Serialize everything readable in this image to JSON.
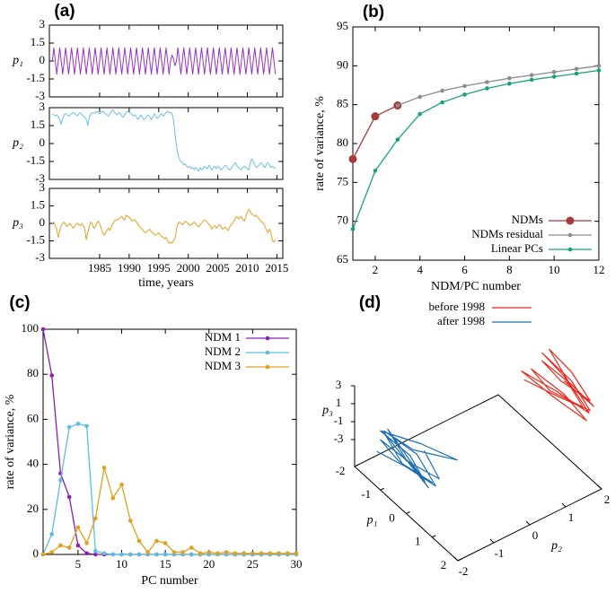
{
  "chart_data": [
    {
      "type": "line",
      "panel": "(a)",
      "x": [
        1977,
        1977.25,
        1977.5,
        1977.75,
        1978,
        1978.25,
        1978.5,
        1978.75,
        1979,
        1979.25,
        1979.5,
        1979.75,
        1980,
        1980.25,
        1980.5,
        1980.75,
        1981,
        1981.25,
        1981.5,
        1981.75,
        1982,
        1982.25,
        1982.5,
        1982.75,
        1983,
        1983.25,
        1983.5,
        1983.75,
        1984,
        1984.25,
        1984.5,
        1984.75,
        1985,
        1985.25,
        1985.5,
        1985.75,
        1986,
        1986.25,
        1986.5,
        1986.75,
        1987,
        1987.25,
        1987.5,
        1987.75,
        1988,
        1988.25,
        1988.5,
        1988.75,
        1989,
        1989.25,
        1989.5,
        1989.75,
        1990,
        1990.25,
        1990.5,
        1990.75,
        1991,
        1991.25,
        1991.5,
        1991.75,
        1992,
        1992.25,
        1992.5,
        1992.75,
        1993,
        1993.25,
        1993.5,
        1993.75,
        1994,
        1994.25,
        1994.5,
        1994.75,
        1995,
        1995.25,
        1995.5,
        1995.75,
        1996,
        1996.25,
        1996.5,
        1996.75,
        1997,
        1997.25,
        1997.5,
        1997.75,
        1998,
        1998.25,
        1998.5,
        1998.75,
        1999,
        1999.25,
        1999.5,
        1999.75,
        2000,
        2000.25,
        2000.5,
        2000.75,
        2001,
        2001.25,
        2001.5,
        2001.75,
        2002,
        2002.25,
        2002.5,
        2002.75,
        2003,
        2003.25,
        2003.5,
        2003.75,
        2004,
        2004.25,
        2004.5,
        2004.75,
        2005,
        2005.25,
        2005.5,
        2005.75,
        2006,
        2006.25,
        2006.5,
        2006.75,
        2007,
        2007.25,
        2007.5,
        2007.75,
        2008,
        2008.25,
        2008.5,
        2008.75,
        2009,
        2009.25,
        2009.5,
        2009.75,
        2010,
        2010.25,
        2010.5,
        2010.75,
        2011,
        2011.25,
        2011.5,
        2011.75,
        2012,
        2012.25,
        2012.5,
        2012.75,
        2013,
        2013.25,
        2013.5,
        2013.75,
        2014,
        2014.25,
        2014.5,
        2014.75
      ],
      "xlim": [
        1976.5,
        2016
      ],
      "xticks": [
        1985,
        1990,
        1995,
        2000,
        2005,
        2010,
        2015
      ],
      "xlabel": "time, years",
      "subplots": [
        {
          "ylabel": "p₁",
          "color": "#9b2fc2",
          "ylim": [
            -3,
            3
          ],
          "yticks": [
            -3,
            -1.5,
            0,
            1.5,
            3
          ],
          "values": [
            0,
            1.1,
            0,
            -1.1,
            0,
            1.1,
            0,
            -1.1,
            0,
            1.1,
            0,
            -1.1,
            0,
            1.1,
            0,
            -1.1,
            0,
            1.1,
            0,
            -1.1,
            0,
            1.1,
            0,
            -1.1,
            0,
            1.1,
            0,
            -1.1,
            0,
            1.1,
            0,
            -1.1,
            0,
            1.1,
            0,
            -1.1,
            0,
            1.1,
            0,
            -1.1,
            0,
            1.1,
            0,
            -1.1,
            0,
            1.1,
            0,
            -1.1,
            0,
            1.1,
            0,
            -1.1,
            0,
            1.1,
            0,
            -1.1,
            0,
            1.1,
            0,
            -1.1,
            0,
            1.1,
            0,
            -1.1,
            0,
            1.1,
            0,
            -1.1,
            0,
            1.1,
            0,
            -1.1,
            0,
            1.1,
            0,
            -1.1,
            0,
            1.1,
            0,
            -1.1,
            0,
            0.5,
            0.2,
            -0.4,
            0,
            1.1,
            0,
            -1.1,
            0,
            1.1,
            0,
            -1.1,
            0,
            1.1,
            0,
            -1.1,
            0,
            1.1,
            0,
            -1.1,
            0,
            1.1,
            0,
            -1.1,
            0,
            1.1,
            0,
            -1.1,
            0,
            1.1,
            0,
            -1.1,
            0,
            1.1,
            0,
            -1.1,
            0,
            1.1,
            0,
            -1.1,
            0,
            1.1,
            0,
            -1.1,
            0,
            1.1,
            0,
            -1.1,
            0,
            1.1,
            0,
            -1.1,
            0,
            1.1,
            0,
            -1.1,
            0,
            1.1,
            0,
            -1.1,
            0,
            1.1,
            0,
            -1.1,
            0,
            1.1,
            0,
            -1.1,
            0,
            1.1,
            0,
            -1.1
          ]
        },
        {
          "ylabel": "p₂",
          "color": "#6cbfe5",
          "ylim": [
            -3,
            3
          ],
          "yticks": [
            -3,
            -1.5,
            0,
            1.5,
            3
          ],
          "values": [
            2.5,
            2.4,
            2.3,
            2.4,
            2.2,
            2.0,
            1.6,
            2.1,
            2.4,
            2.5,
            2.4,
            2.3,
            2.4,
            2.5,
            2.6,
            2.5,
            2.4,
            2.3,
            2.5,
            2.6,
            2.4,
            2.3,
            2.2,
            2.0,
            1.5,
            2.2,
            2.5,
            2.6,
            2.5,
            2.6,
            2.7,
            2.6,
            2.5,
            2.6,
            2.7,
            2.6,
            2.5,
            2.4,
            2.3,
            2.5,
            2.7,
            2.8,
            2.6,
            2.5,
            2.4,
            2.6,
            2.5,
            2.3,
            2.2,
            2.4,
            2.6,
            2.7,
            2.6,
            2.5,
            2.4,
            2.3,
            2.4,
            2.2,
            2.0,
            2.2,
            2.4,
            2.2,
            2.0,
            2.1,
            2.3,
            2.4,
            2.2,
            2.0,
            2.2,
            2.5,
            2.3,
            2.1,
            2.2,
            2.4,
            2.5,
            2.3,
            2.4,
            2.6,
            2.7,
            2.6,
            2.6,
            2.5,
            2.0,
            0.8,
            -0.2,
            -0.9,
            -1.3,
            -1.5,
            -1.6,
            -1.8,
            -1.7,
            -1.9,
            -2.0,
            -1.9,
            -2.1,
            -2.0,
            -2.2,
            -2.0,
            -2.1,
            -2.3,
            -2.0,
            -2.2,
            -2.1,
            -1.9,
            -2.0,
            -2.1,
            -1.8,
            -2.0,
            -2.2,
            -2.0,
            -1.9,
            -2.1,
            -1.9,
            -2.0,
            -2.2,
            -2.1,
            -2.0,
            -1.8,
            -1.9,
            -2.1,
            -2.2,
            -2.1,
            -1.9,
            -1.7,
            -1.6,
            -1.9,
            -2.0,
            -2.1,
            -2.2,
            -2.0,
            -1.9,
            -2.0,
            -2.1,
            -2.2,
            -1.6,
            -1.3,
            -1.5,
            -1.8,
            -2.0,
            -1.9,
            -1.8,
            -1.6,
            -1.7,
            -1.9,
            -2.0,
            -1.7,
            -1.6,
            -1.8,
            -2.0,
            -1.9,
            -2.0,
            -2.1
          ]
        },
        {
          "ylabel": "p₃",
          "color": "#e3a324",
          "ylim": [
            -3,
            3
          ],
          "yticks": [
            -3,
            -1.5,
            0,
            1.5,
            3
          ],
          "values": [
            0,
            0.1,
            -0.2,
            -0.5,
            -1.2,
            -0.6,
            -0.2,
            0,
            0.1,
            -0.1,
            -0.3,
            -0.1,
            0,
            -0.2,
            -0.4,
            -0.3,
            -0.1,
            0,
            -0.1,
            -0.2,
            0,
            -0.2,
            -0.5,
            -1.4,
            -0.8,
            -0.3,
            0.1,
            0,
            -0.4,
            -0.3,
            0,
            0.2,
            0,
            -0.4,
            -0.8,
            -1.0,
            -0.8,
            -0.6,
            -0.4,
            -0.6,
            -0.3,
            0,
            0.2,
            0.3,
            0.3,
            0.4,
            0.5,
            0.6,
            0.4,
            0.3,
            0.7,
            0.6,
            0.5,
            0.4,
            0.2,
            0.3,
            0.3,
            0.1,
            -0.1,
            -0.3,
            -0.4,
            -0.5,
            -0.7,
            -0.8,
            -0.7,
            -0.6,
            -0.5,
            -0.7,
            -0.8,
            -1.0,
            -1.0,
            -0.9,
            -0.8,
            -1.0,
            -1.1,
            -1.2,
            -1.3,
            -1.2,
            -1.5,
            -1.7,
            -1.6,
            -1.7,
            -1.5,
            -1.3,
            -0.5,
            0,
            0.1,
            0,
            -0.1,
            0,
            0.2,
            0.1,
            0,
            -0.2,
            -0.1,
            0,
            0.1,
            0,
            -0.2,
            -0.3,
            -0.1,
            0,
            0.2,
            0.3,
            0.2,
            0.1,
            -0.1,
            -0.2,
            -0.5,
            -0.3,
            -0.2,
            -0.4,
            -0.3,
            -0.1,
            -0.2,
            -0.5,
            -0.4,
            -0.3,
            -0.5,
            -0.6,
            -0.3,
            -0.1,
            0,
            0.2,
            0.5,
            0.6,
            0.4,
            0.5,
            0.6,
            0.3,
            0.2,
            0.6,
            1.0,
            1.2,
            1.0,
            0.8,
            0.7,
            0.6,
            0.7,
            0.5,
            0.4,
            0.2,
            0.1,
            0,
            -0.3,
            -0.6,
            -0.8,
            -0.5,
            -0.8,
            -1.5,
            -1.6,
            -1.4
          ]
        }
      ]
    },
    {
      "type": "line",
      "panel": "(b)",
      "x": [
        1,
        2,
        3,
        4,
        5,
        6,
        7,
        8,
        9,
        10,
        11,
        12
      ],
      "xlim": [
        1,
        12
      ],
      "xticks": [
        2,
        4,
        6,
        8,
        10,
        12
      ],
      "ylim": [
        65,
        95
      ],
      "yticks": [
        65,
        70,
        75,
        80,
        85,
        90,
        95
      ],
      "xlabel": "NDM/PC number",
      "ylabel": "rate of variance, %",
      "legend": "lower right",
      "series": [
        {
          "name": "NDMs",
          "color": "#a83a3a",
          "marker": "large",
          "values": [
            78,
            83.5,
            84.9,
            null,
            null,
            null,
            null,
            null,
            null,
            null,
            null,
            null
          ]
        },
        {
          "name": "NDMs residual",
          "color": "#8c8c8c",
          "marker": "small",
          "values": [
            null,
            null,
            84.9,
            86.0,
            86.8,
            87.4,
            87.9,
            88.4,
            88.8,
            89.2,
            89.6,
            90.0
          ]
        },
        {
          "name": "Linear PCs",
          "color": "#17a37a",
          "marker": "small",
          "values": [
            69,
            76.5,
            80.5,
            83.8,
            85.3,
            86.3,
            87.1,
            87.7,
            88.2,
            88.6,
            89.0,
            89.4
          ]
        }
      ]
    },
    {
      "type": "line",
      "panel": "(c)",
      "x": [
        1,
        2,
        3,
        4,
        5,
        6,
        7,
        8,
        9,
        10,
        11,
        12,
        13,
        14,
        15,
        16,
        17,
        18,
        19,
        20,
        21,
        22,
        23,
        24,
        25,
        26,
        27,
        28,
        29,
        30
      ],
      "xlim": [
        1,
        30
      ],
      "xticks": [
        5,
        10,
        15,
        20,
        25,
        30
      ],
      "ylim": [
        0,
        100
      ],
      "yticks": [
        0,
        20,
        40,
        60,
        80,
        100
      ],
      "xlabel": "PC number",
      "ylabel": "rate of variance, %",
      "legend": "upper right",
      "series": [
        {
          "name": "NDM 1",
          "color": "#8a1fb5",
          "marker": "small",
          "values": [
            100,
            79.5,
            36,
            25.5,
            4,
            0.5,
            0,
            0,
            0,
            0,
            0,
            0,
            0,
            0,
            0,
            0,
            0,
            0,
            0,
            0,
            0,
            0,
            0,
            0,
            0,
            0,
            0,
            0,
            0,
            0
          ]
        },
        {
          "name": "NDM 2",
          "color": "#5bbde0",
          "marker": "small",
          "values": [
            0,
            9,
            33,
            56.5,
            58,
            57,
            1.5,
            0.5,
            0,
            0,
            0,
            0,
            0,
            0,
            0,
            0,
            0,
            0,
            0,
            0,
            0,
            0,
            0,
            0,
            0,
            0,
            0,
            0,
            0,
            0
          ]
        },
        {
          "name": "NDM 3",
          "color": "#e0a020",
          "marker": "small",
          "values": [
            0,
            1,
            4,
            3,
            12,
            5,
            16,
            38.5,
            25,
            31,
            15,
            6,
            1,
            6,
            5,
            1,
            1,
            3,
            0.5,
            1,
            0.5,
            1,
            0.5,
            0.5,
            0.5,
            0.5,
            0.5,
            0.5,
            0.5,
            0.5
          ]
        }
      ]
    },
    {
      "type": "line3d",
      "panel": "(d)",
      "xlabel": "p₁",
      "ylabel": "p₂",
      "zlabel": "p₃",
      "xlim": [
        -2,
        2
      ],
      "ylim": [
        -2,
        2
      ],
      "zlim": [
        -6,
        3
      ],
      "xticks": [
        -2,
        -1,
        0,
        1,
        2
      ],
      "yticks": [
        -2,
        -1,
        0,
        1,
        2
      ],
      "zticks": [
        -3,
        -1,
        1,
        3
      ],
      "legend": "top",
      "series": [
        {
          "name": "before 1998",
          "color": "#e8281c",
          "x": [
            0,
            1,
            0,
            -1,
            0,
            1,
            0,
            -1,
            0,
            1.1,
            0,
            -1.1,
            0,
            1,
            0,
            -1,
            0,
            1,
            0,
            -1,
            0,
            1,
            0,
            -1
          ],
          "y": [
            2.4,
            2.5,
            2.6,
            2.5,
            2.3,
            2.4,
            2.6,
            2.7,
            2.5,
            2.3,
            2.2,
            2.0,
            2.1,
            2.3,
            2.4,
            2.2,
            2.0,
            2.2,
            2.4,
            2.5,
            2.6,
            2.4,
            2.2,
            2.0
          ],
          "z": [
            0,
            -0.4,
            -0.8,
            -0.6,
            0.2,
            0.4,
            0.6,
            0.3,
            -0.2,
            -0.5,
            -0.8,
            -1.0,
            -1.2,
            -1.6,
            -1.5,
            -0.9,
            -0.3,
            0.1,
            0.5,
            0.3,
            -0.4,
            -0.7,
            -1.3,
            -1.7
          ]
        },
        {
          "name": "after 1998",
          "color": "#1b6fb0",
          "x": [
            0,
            1,
            0,
            -1,
            0,
            1,
            0,
            -1,
            0,
            1,
            0,
            -1,
            0,
            1,
            0,
            -1,
            0,
            1,
            0,
            -1,
            0,
            1,
            0,
            -1
          ],
          "y": [
            -1.5,
            -1.8,
            -2.0,
            -1.9,
            -2.1,
            -2.0,
            -2.2,
            -2.0,
            -1.9,
            -2.1,
            -2.0,
            -1.8,
            -2.0,
            -2.2,
            -1.9,
            -2.0,
            -1.6,
            -1.3,
            -1.8,
            -1.9,
            -1.7,
            -1.9,
            -2.0,
            -2.1
          ],
          "z": [
            0,
            0.1,
            -0.1,
            0.2,
            -0.3,
            0.1,
            0.2,
            -0.4,
            -0.5,
            -0.3,
            0,
            0.4,
            0.5,
            0.6,
            0.3,
            0.6,
            1.0,
            1.2,
            0.7,
            0.4,
            0,
            -0.5,
            -0.8,
            -1.5
          ]
        }
      ]
    }
  ]
}
